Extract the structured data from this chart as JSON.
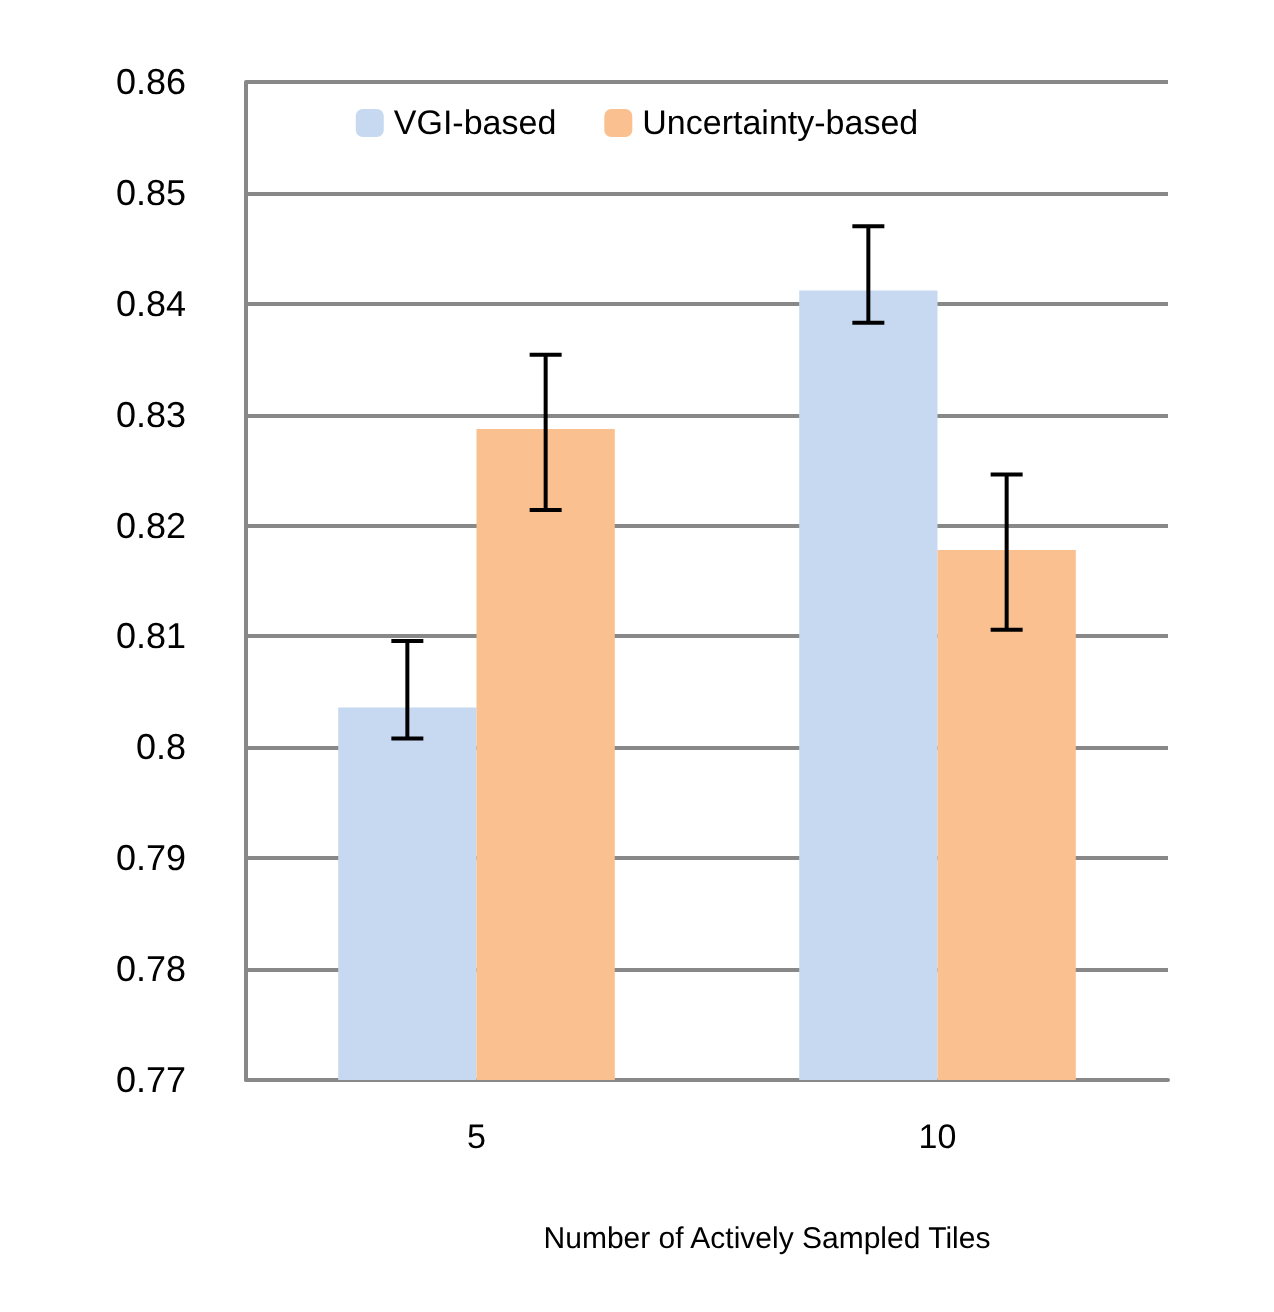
{
  "chart_data": {
    "type": "bar",
    "xlabel": "Number of Actively Sampled Tiles",
    "categories": [
      "5",
      "10"
    ],
    "series": [
      {
        "name": "VGI-based",
        "color": "#c6d9f1",
        "values": [
          0.8036,
          0.8412
        ],
        "errors": [
          [
            0.8008,
            0.8096
          ],
          [
            0.8383,
            0.847
          ]
        ]
      },
      {
        "name": "Uncertainty-based",
        "color": "#fac090",
        "values": [
          0.8287,
          0.8178
        ],
        "errors": [
          [
            0.8214,
            0.8354
          ],
          [
            0.8106,
            0.8246
          ]
        ]
      }
    ],
    "ylim": [
      0.77,
      0.86
    ],
    "yticks": [
      0.77,
      0.78,
      0.79,
      0.8,
      0.81,
      0.82,
      0.83,
      0.84,
      0.85,
      0.86
    ],
    "grid": "y",
    "legend": "top"
  }
}
